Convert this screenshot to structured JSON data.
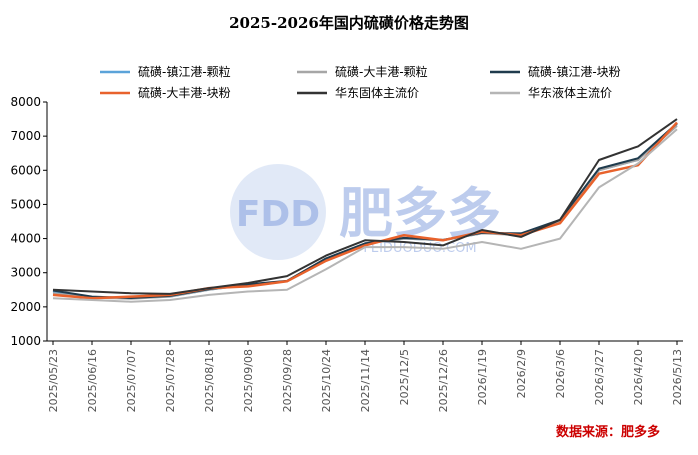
{
  "chart_data": {
    "type": "line",
    "title": "2025-2026年国内硫磺价格走势图",
    "ylim": [
      1000,
      8000
    ],
    "yticks": [
      1000,
      2000,
      3000,
      4000,
      5000,
      6000,
      7000,
      8000
    ],
    "x": [
      "2025/05/23",
      "2025/06/16",
      "2025/07/07",
      "2025/07/28",
      "2025/08/18",
      "2025/09/08",
      "2025/09/28",
      "2025/10/24",
      "2025/11/14",
      "2025/12/5",
      "2025/12/26",
      "2026/1/19",
      "2026/2/9",
      "2026/3/6",
      "2026/3/27",
      "2026/4/20",
      "2026/5/13"
    ],
    "legend_position": "top",
    "grid": false,
    "series": [
      {
        "name": "硫磺-镇江港-颗粒",
        "color": "#5ba3d9",
        "width": 2,
        "values": [
          2450,
          2280,
          2250,
          2300,
          2500,
          2650,
          2750,
          3400,
          3850,
          4000,
          3950,
          4150,
          4150,
          4500,
          6000,
          6300,
          7350
        ]
      },
      {
        "name": "硫磺-大丰港-颗粒",
        "color": "#a6a6a6",
        "width": 2,
        "values": [
          2400,
          2270,
          2240,
          2300,
          2500,
          2650,
          2750,
          3400,
          3850,
          4000,
          3950,
          4150,
          4100,
          4500,
          6000,
          6300,
          7300
        ]
      },
      {
        "name": "硫磺-镇江港-块粉",
        "color": "#1f3b4d",
        "width": 2,
        "values": [
          2480,
          2300,
          2260,
          2320,
          2520,
          2660,
          2760,
          3420,
          3860,
          4020,
          3960,
          4170,
          4150,
          4550,
          6050,
          6350,
          7380
        ]
      },
      {
        "name": "硫磺-大丰港-块粉",
        "color": "#e8622c",
        "width": 2.5,
        "values": [
          2350,
          2250,
          2300,
          2350,
          2550,
          2600,
          2750,
          3350,
          3800,
          4100,
          3950,
          4200,
          4100,
          4450,
          5900,
          6150,
          7400
        ]
      },
      {
        "name": "华东固体主流价",
        "color": "#333333",
        "width": 2,
        "values": [
          2500,
          2450,
          2400,
          2380,
          2550,
          2700,
          2900,
          3500,
          3950,
          3900,
          3800,
          4250,
          4050,
          4550,
          6300,
          6700,
          7500
        ]
      },
      {
        "name": "华东液体主流价",
        "color": "#b5b5b5",
        "width": 2,
        "values": [
          2250,
          2200,
          2150,
          2200,
          2350,
          2450,
          2500,
          3100,
          3750,
          3750,
          3700,
          3900,
          3700,
          4000,
          5500,
          6200,
          7200
        ]
      }
    ]
  },
  "watermark": {
    "brand_mark": "FDD",
    "brand_name": "肥多多",
    "domain": "FEIDUODUO.COM"
  },
  "source_note": "数据来源：肥多多"
}
